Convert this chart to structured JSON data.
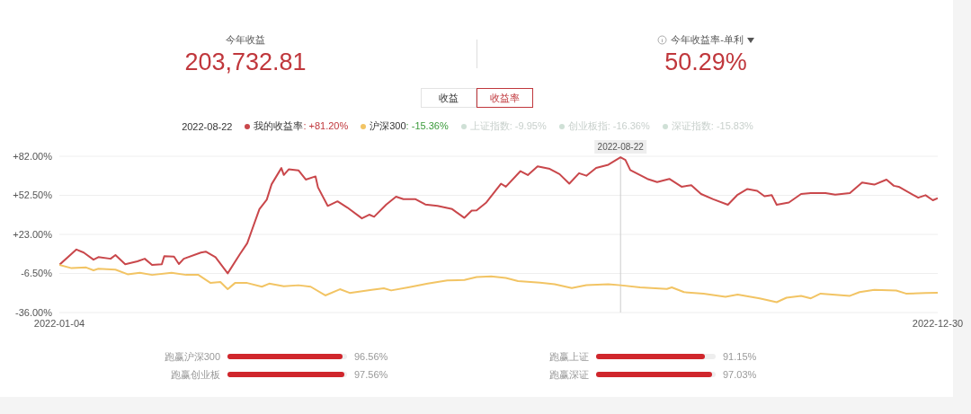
{
  "chart_data": [
    {
      "type": "other",
      "annotations": [
        "今年收益",
        "203,732.81",
        "今年收益率-单利",
        "50.29%",
        "收益",
        "收益率"
      ]
    },
    {
      "type": "line",
      "ylim": [
        -36,
        82
      ],
      "yticks": [
        {
          "value": 82,
          "label": "+82.00%"
        },
        {
          "value": 52.5,
          "label": "+52.50%"
        },
        {
          "value": 23,
          "label": "+23.00%"
        },
        {
          "value": -6.5,
          "label": "-6.50%"
        },
        {
          "value": -36,
          "label": "-36.00%"
        }
      ],
      "xlim": [
        "2022-01-04",
        "2022-12-30"
      ],
      "xticks": [
        {
          "value": "2022-01-04",
          "label": "2022-01-04"
        },
        {
          "value": "2022-12-30",
          "label": "2022-12-30"
        }
      ],
      "grid": "y",
      "legend": "top",
      "line_style": "solid",
      "marker": "none",
      "ref_lines": [
        {
          "axis": "x",
          "value": "2022-08-22",
          "label": "2022-08-22",
          "color": "#cccccc"
        }
      ],
      "annotations": [
        "2022-08-22",
        ": +81.20%",
        ": -15.36%",
        "上证指数: -9.95%",
        "创业板指: -16.36%",
        "深证指数: -15.83%"
      ],
      "series": [
        {
          "name": "我的收益率",
          "color": "#c9474b",
          "x": [
            "2022-01-04",
            "2022-01-11",
            "2022-01-14",
            "2022-01-18",
            "2022-01-20",
            "2022-01-25",
            "2022-01-27",
            "2022-01-31",
            "2022-02-05",
            "2022-02-08",
            "2022-02-11",
            "2022-02-15",
            "2022-02-16",
            "2022-02-20",
            "2022-02-22",
            "2022-02-24",
            "2022-03-03",
            "2022-03-05",
            "2022-03-09",
            "2022-03-14",
            "2022-03-19",
            "2022-03-22",
            "2022-03-27",
            "2022-03-30",
            "2022-04-01",
            "2022-04-05",
            "2022-04-06",
            "2022-04-08",
            "2022-04-12",
            "2022-04-15",
            "2022-04-19",
            "2022-04-20",
            "2022-04-24",
            "2022-04-28",
            "2022-05-02",
            "2022-05-08",
            "2022-05-11",
            "2022-05-13",
            "2022-05-18",
            "2022-05-22",
            "2022-05-25",
            "2022-05-30",
            "2022-06-03",
            "2022-06-08",
            "2022-06-14",
            "2022-06-19",
            "2022-06-22",
            "2022-06-24",
            "2022-06-28",
            "2022-07-04",
            "2022-07-06",
            "2022-07-12",
            "2022-07-15",
            "2022-07-19",
            "2022-07-24",
            "2022-07-28",
            "2022-08-01",
            "2022-08-05",
            "2022-08-08",
            "2022-08-12",
            "2022-08-17",
            "2022-08-22",
            "2022-08-24",
            "2022-08-26",
            "2022-09-02",
            "2022-09-06",
            "2022-09-11",
            "2022-09-16",
            "2022-09-20",
            "2022-09-24",
            "2022-09-29",
            "2022-10-05",
            "2022-10-09",
            "2022-10-13",
            "2022-10-17",
            "2022-10-20",
            "2022-10-23",
            "2022-10-25",
            "2022-10-30",
            "2022-11-04",
            "2022-11-08",
            "2022-11-14",
            "2022-11-18",
            "2022-11-24",
            "2022-11-29",
            "2022-12-04",
            "2022-12-09",
            "2022-12-12",
            "2022-12-14",
            "2022-12-22",
            "2022-12-25",
            "2022-12-28",
            "2022-12-30"
          ],
          "values": [
            0,
            11.6,
            9.3,
            3.9,
            5.8,
            4.6,
            7.4,
            0.4,
            2.7,
            4.6,
            -0.1,
            0.4,
            6.5,
            6.2,
            0.6,
            4.6,
            9.3,
            10,
            5.8,
            -6.4,
            8.1,
            16.3,
            42.1,
            49.2,
            60.9,
            73.1,
            67.9,
            72.1,
            71.4,
            64.4,
            66.8,
            58.5,
            44.5,
            48,
            43.3,
            35.1,
            37.9,
            36.3,
            45.6,
            51.5,
            49.6,
            49.6,
            45.6,
            44.5,
            42.1,
            35.5,
            41,
            41.2,
            47.1,
            61.3,
            59,
            70.8,
            67.8,
            74.4,
            72.5,
            68.5,
            61.3,
            69.2,
            67.3,
            73.2,
            75.6,
            81.2,
            79.2,
            71.6,
            64.9,
            62.5,
            64.9,
            59,
            60.2,
            53.5,
            49.5,
            45.4,
            53,
            57.3,
            55.9,
            51.8,
            52.6,
            45.4,
            47.1,
            53.5,
            54.2,
            54.2,
            53,
            54.2,
            62.1,
            60.6,
            64.4,
            59.7,
            59,
            50.7,
            52.6,
            48.8,
            50.3
          ]
        },
        {
          "name": "沪深300",
          "color": "#f2c464",
          "x": [
            "2022-01-04",
            "2022-01-09",
            "2022-01-15",
            "2022-01-18",
            "2022-01-20",
            "2022-01-27",
            "2022-02-01",
            "2022-02-06",
            "2022-02-11",
            "2022-02-19",
            "2022-02-25",
            "2022-03-02",
            "2022-03-07",
            "2022-03-11",
            "2022-03-14",
            "2022-03-17",
            "2022-03-22",
            "2022-03-28",
            "2022-03-31",
            "2022-04-06",
            "2022-04-12",
            "2022-04-17",
            "2022-04-23",
            "2022-04-29",
            "2022-05-03",
            "2022-05-12",
            "2022-05-17",
            "2022-05-20",
            "2022-05-27",
            "2022-06-04",
            "2022-06-12",
            "2022-06-19",
            "2022-06-24",
            "2022-06-30",
            "2022-07-06",
            "2022-07-11",
            "2022-07-20",
            "2022-07-26",
            "2022-08-02",
            "2022-08-08",
            "2022-08-17",
            "2022-08-22",
            "2022-08-30",
            "2022-09-10",
            "2022-09-12",
            "2022-09-17",
            "2022-09-25",
            "2022-10-04",
            "2022-10-09",
            "2022-10-18",
            "2022-10-25",
            "2022-10-29",
            "2022-11-04",
            "2022-11-08",
            "2022-11-12",
            "2022-11-24",
            "2022-11-28",
            "2022-12-04",
            "2022-12-13",
            "2022-12-17",
            "2022-12-25",
            "2022-12-30"
          ],
          "values": [
            0,
            -2.5,
            -2,
            -4.1,
            -2.9,
            -3.6,
            -7.1,
            -6,
            -7.6,
            -6,
            -7.6,
            -7.6,
            -13.7,
            -13,
            -18.4,
            -13.7,
            -13.7,
            -16.5,
            -14.2,
            -16.1,
            -15.4,
            -16.5,
            -23.1,
            -18.4,
            -21.2,
            -18.9,
            -17.7,
            -19.3,
            -17,
            -14.2,
            -11.8,
            -11.4,
            -9.2,
            -8.7,
            -9.9,
            -12.2,
            -13.4,
            -14.6,
            -17.5,
            -15.3,
            -14.6,
            -15.4,
            -17,
            -18.2,
            -17,
            -20.6,
            -21.7,
            -24.1,
            -22.5,
            -25.3,
            -28.2,
            -24.8,
            -23.4,
            -25.3,
            -21.7,
            -23.4,
            -20.6,
            -18.9,
            -19.4,
            -21.7,
            -21.3,
            -21
          ]
        }
      ]
    },
    {
      "type": "other",
      "categories": [
        "跑赢沪深300",
        "跑赢上证",
        "跑赢创业板",
        "跑赢深证"
      ],
      "values": [
        96.56,
        91.15,
        97.56,
        97.03
      ],
      "value_labels": [
        "96.56%",
        "91.15%",
        "97.56%",
        "97.03%"
      ],
      "color": "#d0262c"
    }
  ]
}
